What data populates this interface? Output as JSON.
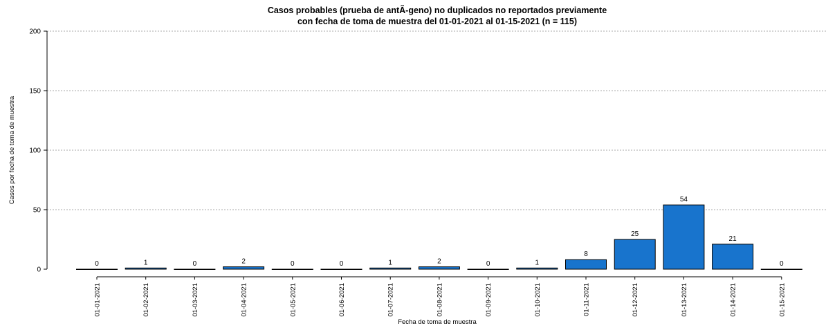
{
  "chart_data": {
    "type": "bar",
    "title": [
      "Casos probables (prueba de antÃ-geno) no duplicados no reportados previamente",
      "con fecha de toma de muestra del 01-01-2021 al 01-15-2021 (n = 115)"
    ],
    "xlabel": "Fecha de toma de muestra",
    "ylabel": "Casos por fecha de toma de muestra",
    "categories": [
      "01-01-2021",
      "01-02-2021",
      "01-03-2021",
      "01-04-2021",
      "01-05-2021",
      "01-06-2021",
      "01-07-2021",
      "01-08-2021",
      "01-09-2021",
      "01-10-2021",
      "01-11-2021",
      "01-12-2021",
      "01-13-2021",
      "01-14-2021",
      "01-15-2021"
    ],
    "values": [
      0,
      1,
      0,
      2,
      0,
      0,
      1,
      2,
      0,
      1,
      8,
      25,
      54,
      21,
      0
    ],
    "ylim": [
      0,
      200
    ],
    "yticks": [
      0,
      50,
      100,
      150,
      200
    ],
    "grid": "horizontal dotted",
    "bar_color": "#1874cd",
    "bar_edge_color": "#000000"
  }
}
